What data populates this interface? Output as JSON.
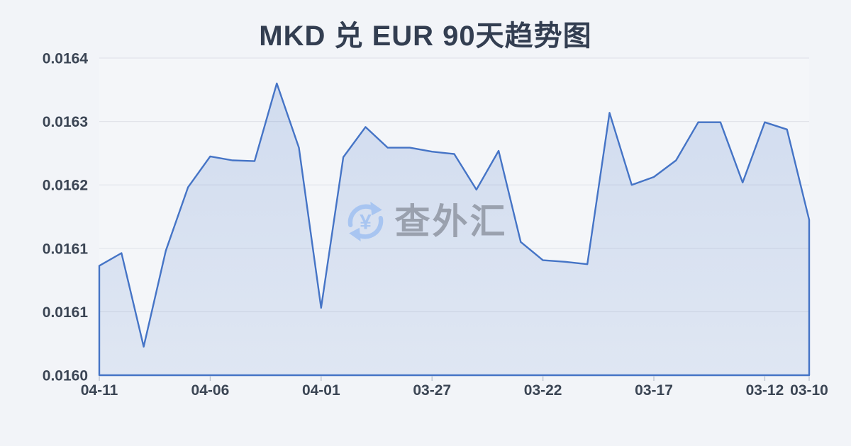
{
  "title": "MKD 兑 EUR 90天趋势图",
  "watermark": {
    "text": "查外汇",
    "icon": "currency-exchange-icon",
    "icon_color": "#a8c5f1",
    "text_color": "#9aa1ae"
  },
  "colors": {
    "background": "#f2f4f8",
    "line": "#4574c6",
    "area_top": "rgba(69,116,198,0.20)",
    "area_bottom": "rgba(69,116,198,0.12)",
    "grid": "#e2e4ea",
    "axis_tick": "#b9c1cf",
    "label": "#3b4554",
    "title": "#333e51"
  },
  "chart_data": {
    "type": "area",
    "title": "MKD 兑 EUR 90天趋势图",
    "xlabel": "",
    "ylabel": "",
    "grid": true,
    "legend_position": "none",
    "ylim": [
      0.016,
      0.0164
    ],
    "y_tick_labels": [
      "0.0164",
      "0.0163",
      "0.0162",
      "0.0161",
      "0.0161",
      "0.0160"
    ],
    "x_tick_labels": [
      "04-11",
      "04-06",
      "04-01",
      "03-27",
      "03-22",
      "03-17",
      "03-12",
      "03-10"
    ],
    "x": [
      "04-11",
      "04-10",
      "04-09",
      "04-08",
      "04-07",
      "04-06",
      "04-05",
      "04-04",
      "04-03",
      "04-02",
      "04-01",
      "03-31",
      "03-30",
      "03-29",
      "03-28",
      "03-27",
      "03-26",
      "03-25",
      "03-24",
      "03-23",
      "03-22",
      "03-21",
      "03-20",
      "03-19",
      "03-18",
      "03-17",
      "03-16",
      "03-15",
      "03-14",
      "03-13",
      "03-12",
      "03-11",
      "03-10"
    ],
    "values": [
      0.016138,
      0.016154,
      0.016036,
      0.016157,
      0.016237,
      0.016276,
      0.016271,
      0.01627,
      0.016368,
      0.016287,
      0.016085,
      0.016275,
      0.016313,
      0.016287,
      0.016287,
      0.016282,
      0.016279,
      0.016234,
      0.016283,
      0.016168,
      0.016145,
      0.016143,
      0.01614,
      0.016331,
      0.01624,
      0.01625,
      0.016271,
      0.016319,
      0.016319,
      0.016243,
      0.016319,
      0.01631,
      0.016196
    ]
  }
}
